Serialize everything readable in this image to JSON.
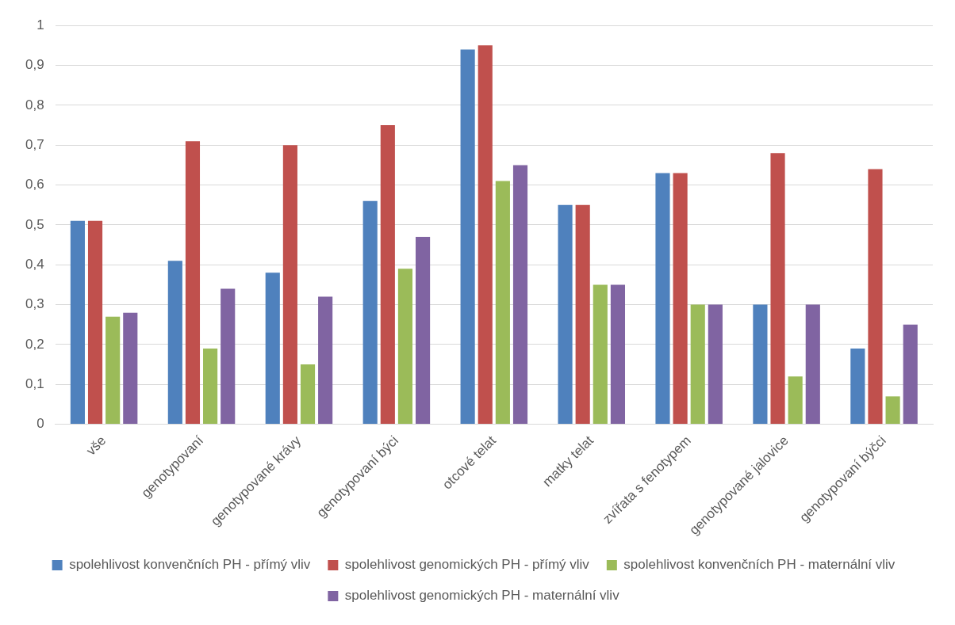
{
  "chart_data": {
    "type": "bar",
    "categories": [
      "vše",
      "genotypovaní",
      "genotypované krávy",
      "genotypovaní býci",
      "otcové telat",
      "matky telat",
      "zvířata s fenotypem",
      "genotypované jalovice",
      "genotypovaní býčci"
    ],
    "series": [
      {
        "name": "spolehlivost konvenčních PH - přímý vliv",
        "color": "#4f81bd",
        "values": [
          0.51,
          0.41,
          0.38,
          0.56,
          0.94,
          0.55,
          0.63,
          0.3,
          0.19
        ]
      },
      {
        "name": "spolehlivost genomických PH - přímý vliv",
        "color": "#c0504d",
        "values": [
          0.51,
          0.71,
          0.7,
          0.75,
          0.95,
          0.55,
          0.63,
          0.68,
          0.64
        ]
      },
      {
        "name": "spolehlivost konvenčních PH - maternální vliv",
        "color": "#9bbb59",
        "values": [
          0.27,
          0.19,
          0.15,
          0.39,
          0.61,
          0.35,
          0.3,
          0.12,
          0.07
        ]
      },
      {
        "name": "spolehlivost genomických PH - maternální vliv",
        "color": "#8064a2",
        "values": [
          0.28,
          0.34,
          0.32,
          0.47,
          0.65,
          0.35,
          0.3,
          0.3,
          0.25
        ]
      }
    ],
    "ylim": [
      0,
      1
    ],
    "yticks": [
      0,
      {
        "value": 0.1,
        "label": "0,1"
      },
      {
        "value": 0.2,
        "label": "0,2"
      },
      {
        "value": 0.3,
        "label": "0,3"
      },
      {
        "value": 0.4,
        "label": "0,4"
      },
      {
        "value": 0.5,
        "label": "0,5"
      },
      {
        "value": 0.6,
        "label": "0,6"
      },
      {
        "value": 0.7,
        "label": "0,7"
      },
      {
        "value": 0.8,
        "label": "0,8"
      },
      {
        "value": 0.9,
        "label": "0,9"
      },
      1
    ],
    "grid": "y",
    "legend": "bottom"
  }
}
